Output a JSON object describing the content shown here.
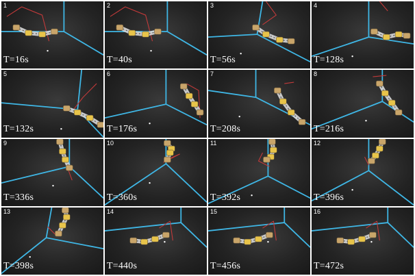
{
  "frames": [
    {
      "index": "1",
      "time": "T=16s",
      "pose": "A"
    },
    {
      "index": "2",
      "time": "T=40s",
      "pose": "A"
    },
    {
      "index": "3",
      "time": "T=56s",
      "pose": "B"
    },
    {
      "index": "4",
      "time": "T=128s",
      "pose": "C"
    },
    {
      "index": "5",
      "time": "T=132s",
      "pose": "D"
    },
    {
      "index": "6",
      "time": "T=176s",
      "pose": "E"
    },
    {
      "index": "7",
      "time": "T=208s",
      "pose": "F"
    },
    {
      "index": "8",
      "time": "T=216s",
      "pose": "G"
    },
    {
      "index": "9",
      "time": "T=336s",
      "pose": "H"
    },
    {
      "index": "10",
      "time": "T=360s",
      "pose": "I"
    },
    {
      "index": "11",
      "time": "T=392s",
      "pose": "J"
    },
    {
      "index": "12",
      "time": "T=396s",
      "pose": "K"
    },
    {
      "index": "13",
      "time": "T=398s",
      "pose": "L"
    },
    {
      "index": "14",
      "time": "T=440s",
      "pose": "M"
    },
    {
      "index": "15",
      "time": "T=456s",
      "pose": "M"
    },
    {
      "index": "16",
      "time": "T=472s",
      "pose": "M"
    }
  ],
  "colors": {
    "floor": "#262626",
    "floor_line": "#3fb7e6",
    "cable": "#c23a3a",
    "robot_metal": "#d9d9d9",
    "robot_joint": "#c9a56a",
    "robot_band": "#e8c44a"
  }
}
